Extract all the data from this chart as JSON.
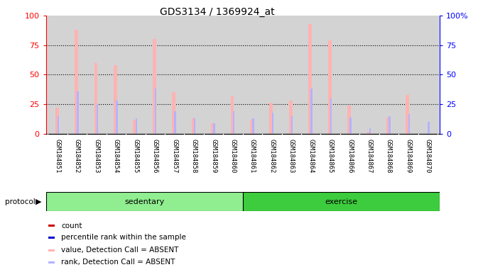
{
  "title": "GDS3134 / 1369924_at",
  "samples": [
    "GSM184851",
    "GSM184852",
    "GSM184853",
    "GSM184854",
    "GSM184855",
    "GSM184856",
    "GSM184857",
    "GSM184858",
    "GSM184859",
    "GSM184860",
    "GSM184861",
    "GSM184862",
    "GSM184863",
    "GSM184864",
    "GSM184865",
    "GSM184866",
    "GSM184867",
    "GSM184868",
    "GSM184869",
    "GSM184870"
  ],
  "absent_count_values": [
    22,
    88,
    60,
    58,
    12,
    80,
    35,
    13,
    9,
    32,
    12,
    26,
    28,
    93,
    79,
    24,
    2,
    14,
    33,
    0
  ],
  "absent_rank_values": [
    15,
    36,
    25,
    28,
    13,
    38,
    19,
    13,
    9,
    19,
    13,
    18,
    15,
    38,
    30,
    14,
    5,
    15,
    17,
    10
  ],
  "yticks": [
    0,
    25,
    50,
    75,
    100
  ],
  "count_color_present": "#cc0000",
  "count_color_absent": "#ffb3b3",
  "rank_color_present": "#0000cc",
  "rank_color_absent": "#b3b3ff",
  "plot_bg_color": "#d3d3d3",
  "label_bg_color": "#c8c8c8",
  "protocol_bg_sedentary": "#90ee90",
  "protocol_bg_exercise": "#3dcc3d",
  "legend_items": [
    {
      "label": "count",
      "color": "#cc0000"
    },
    {
      "label": "percentile rank within the sample",
      "color": "#0000cc"
    },
    {
      "label": "value, Detection Call = ABSENT",
      "color": "#ffb3b3"
    },
    {
      "label": "rank, Detection Call = ABSENT",
      "color": "#b3b3ff"
    }
  ]
}
